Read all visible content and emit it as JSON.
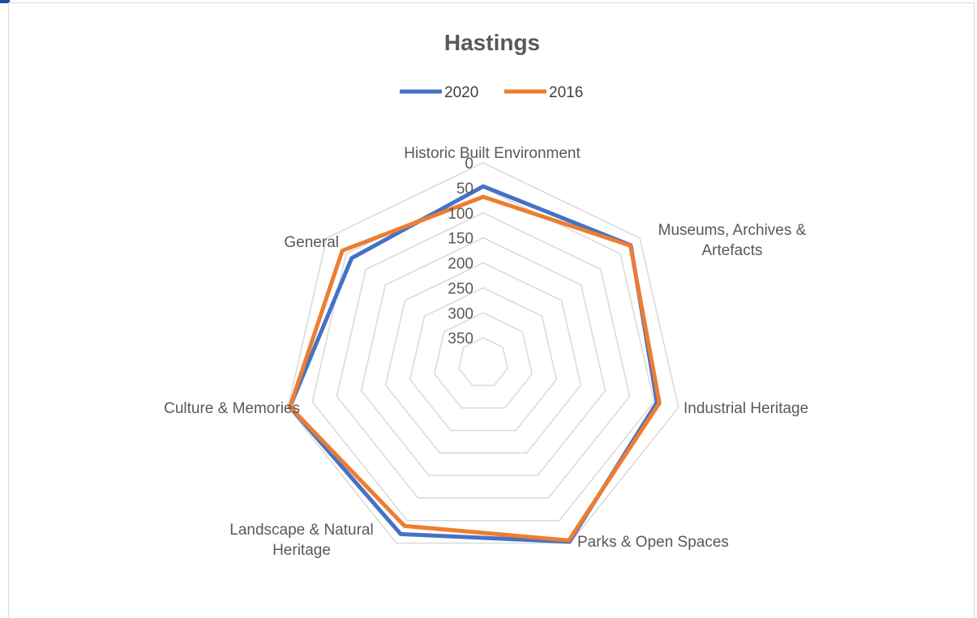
{
  "chart_data": {
    "type": "radar",
    "title": "Hastings",
    "categories": [
      "Historic Built Environment",
      "Museums, Archives & Artefacts",
      "Industrial Heritage",
      "Parks & Open Spaces",
      "Landscape & Natural Heritage",
      "General",
      "Culture & Memories"
    ],
    "radial_ticks": [
      "0",
      "50",
      "100",
      "150",
      "200",
      "250",
      "300",
      "350"
    ],
    "radial_axis": {
      "min": 0,
      "max": 400,
      "reversed": true,
      "step": 50
    },
    "series": [
      {
        "name": "2020",
        "color": "#4472c4",
        "values": [
          47,
          23,
          44,
          3,
          20,
          4,
          64
        ]
      },
      {
        "name": "2016",
        "color": "#ed7d31",
        "values": [
          68,
          24,
          39,
          6,
          38,
          4,
          40
        ]
      }
    ],
    "legend_position": "top",
    "grid": true
  }
}
